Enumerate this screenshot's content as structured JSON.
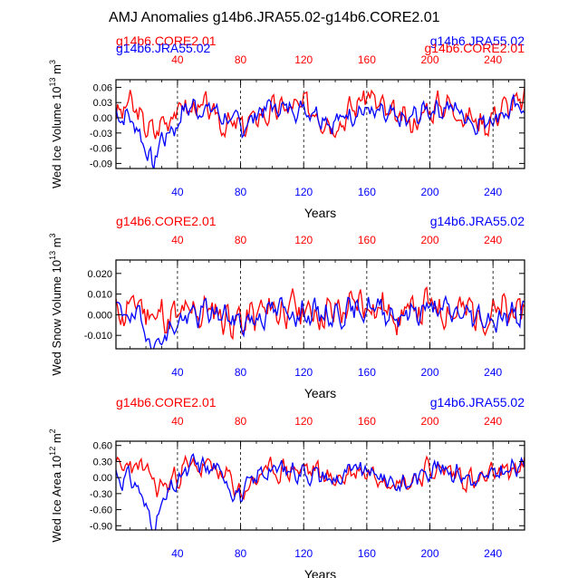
{
  "title": "AMJ Anomalies g14b6.JRA55.02-g14b6.CORE2.01",
  "colors": {
    "core": "#ff0000",
    "jra": "#0000ff",
    "axis": "#000000"
  },
  "chart_data": [
    {
      "type": "line",
      "name": "ice-volume",
      "ylabel_main": "Wed Ice Volume 10",
      "ylabel_exp": "13",
      "ylabel_unit": " m",
      "ylabel_unit_exp": "3",
      "xlabel": "Years",
      "legend_left": "g14b6.CORE2.01",
      "legend_right": "g14b6.JRA55.02",
      "legend_left_overlay": "g14b6.JRA55.02",
      "legend_right_overlay": "g14b6.CORE2.01",
      "xlim": [
        1,
        260
      ],
      "ylim": [
        -0.1,
        0.075
      ],
      "yticks": [
        0.06,
        0.03,
        0.0,
        -0.03,
        -0.06,
        -0.09
      ],
      "ytick_labels": [
        "0.06",
        "0.03",
        "0.00",
        "-0.03",
        "-0.06",
        "-0.09"
      ],
      "xticks": [
        40,
        80,
        120,
        160,
        200,
        240
      ],
      "xtick_labels": [
        "40",
        "80",
        "120",
        "160",
        "200",
        "240"
      ],
      "grid_x": [
        40,
        80,
        120,
        160,
        200,
        240
      ],
      "series": [
        {
          "name": "g14b6.CORE2.01",
          "amp": 0.035,
          "seed": 3,
          "keys": [
            [
              1,
              0.0
            ],
            [
              10,
              0.03
            ],
            [
              18,
              -0.01
            ],
            [
              25,
              -0.03
            ],
            [
              33,
              0.0
            ],
            [
              40,
              0.02
            ],
            [
              55,
              0.02
            ],
            [
              70,
              -0.01
            ],
            [
              80,
              -0.02
            ],
            [
              95,
              0.01
            ],
            [
              110,
              0.02
            ],
            [
              125,
              0.02
            ],
            [
              140,
              -0.01
            ],
            [
              155,
              0.03
            ],
            [
              160,
              0.05
            ],
            [
              175,
              0.0
            ],
            [
              190,
              -0.01
            ],
            [
              200,
              0.02
            ],
            [
              210,
              0.03
            ],
            [
              225,
              0.0
            ],
            [
              235,
              -0.01
            ],
            [
              245,
              0.02
            ],
            [
              260,
              0.03
            ]
          ]
        },
        {
          "name": "g14b6.JRA55.02",
          "amp": 0.03,
          "seed": 7,
          "keys": [
            [
              1,
              0.01
            ],
            [
              10,
              0.0
            ],
            [
              18,
              -0.04
            ],
            [
              22,
              -0.08
            ],
            [
              25,
              -0.09
            ],
            [
              30,
              -0.04
            ],
            [
              38,
              -0.02
            ],
            [
              45,
              0.02
            ],
            [
              60,
              0.02
            ],
            [
              75,
              -0.01
            ],
            [
              80,
              -0.02
            ],
            [
              95,
              0.02
            ],
            [
              110,
              0.02
            ],
            [
              125,
              0.02
            ],
            [
              140,
              -0.01
            ],
            [
              155,
              0.02
            ],
            [
              170,
              0.0
            ],
            [
              185,
              -0.01
            ],
            [
              200,
              0.02
            ],
            [
              215,
              0.02
            ],
            [
              230,
              -0.01
            ],
            [
              245,
              0.01
            ],
            [
              260,
              0.02
            ]
          ]
        }
      ]
    },
    {
      "type": "line",
      "name": "snow-volume",
      "ylabel_main": "Wed Snow Volume 10",
      "ylabel_exp": "13",
      "ylabel_unit": " m",
      "ylabel_unit_exp": "3",
      "xlabel": "Years",
      "legend_left": "g14b6.CORE2.01",
      "legend_right": "g14b6.JRA55.02",
      "xlim": [
        1,
        260
      ],
      "ylim": [
        -0.0165,
        0.0265
      ],
      "yticks": [
        0.02,
        0.01,
        0.0,
        -0.01
      ],
      "ytick_labels": [
        "0.020",
        "0.010",
        "0.000",
        "-0.010"
      ],
      "xticks": [
        40,
        80,
        120,
        160,
        200,
        240
      ],
      "xtick_labels": [
        "40",
        "80",
        "120",
        "160",
        "200",
        "240"
      ],
      "grid_x": [
        40,
        80,
        120,
        160,
        200,
        240
      ],
      "series": [
        {
          "name": "g14b6.CORE2.01",
          "amp": 0.012,
          "seed": 11,
          "keys": [
            [
              1,
              0.0
            ],
            [
              15,
              0.005
            ],
            [
              25,
              0.0
            ],
            [
              40,
              -0.002
            ],
            [
              60,
              0.003
            ],
            [
              80,
              -0.004
            ],
            [
              100,
              0.003
            ],
            [
              120,
              0.002
            ],
            [
              140,
              0.001
            ],
            [
              160,
              0.006
            ],
            [
              180,
              0.0
            ],
            [
              200,
              0.004
            ],
            [
              220,
              0.002
            ],
            [
              240,
              0.0
            ],
            [
              260,
              0.002
            ]
          ]
        },
        {
          "name": "g14b6.JRA55.02",
          "amp": 0.008,
          "seed": 19,
          "keys": [
            [
              1,
              0.003
            ],
            [
              12,
              0.0
            ],
            [
              20,
              -0.008
            ],
            [
              26,
              -0.014
            ],
            [
              32,
              -0.01
            ],
            [
              40,
              -0.004
            ],
            [
              60,
              0.002
            ],
            [
              80,
              -0.004
            ],
            [
              100,
              0.002
            ],
            [
              120,
              0.001
            ],
            [
              140,
              0.0
            ],
            [
              160,
              0.004
            ],
            [
              180,
              0.0
            ],
            [
              200,
              0.003
            ],
            [
              220,
              0.0
            ],
            [
              240,
              -0.002
            ],
            [
              260,
              0.001
            ]
          ]
        }
      ]
    },
    {
      "type": "line",
      "name": "ice-area",
      "ylabel_main": "Wed Ice Area 10",
      "ylabel_exp": "12",
      "ylabel_unit": " m",
      "ylabel_unit_exp": "2",
      "xlabel": "Years",
      "legend_left": "g14b6.CORE2.01",
      "legend_right": "g14b6.JRA55.02",
      "xlim": [
        1,
        260
      ],
      "ylim": [
        -0.98,
        0.68
      ],
      "yticks": [
        0.6,
        0.3,
        0.0,
        -0.3,
        -0.6,
        -0.9
      ],
      "ytick_labels": [
        "0.60",
        "0.30",
        "0.00",
        "-0.30",
        "-0.60",
        "-0.90"
      ],
      "xticks": [
        40,
        80,
        120,
        160,
        200,
        240
      ],
      "xtick_labels": [
        "40",
        "80",
        "120",
        "160",
        "200",
        "240"
      ],
      "grid_x": [
        40,
        80,
        120,
        160,
        200,
        240
      ],
      "series": [
        {
          "name": "g14b6.CORE2.01",
          "amp": 0.28,
          "seed": 23,
          "keys": [
            [
              1,
              0.1
            ],
            [
              10,
              0.25
            ],
            [
              20,
              0.1
            ],
            [
              28,
              -0.2
            ],
            [
              35,
              -0.1
            ],
            [
              45,
              0.2
            ],
            [
              60,
              0.2
            ],
            [
              75,
              -0.1
            ],
            [
              80,
              -0.3
            ],
            [
              95,
              0.1
            ],
            [
              110,
              0.15
            ],
            [
              125,
              0.15
            ],
            [
              140,
              -0.05
            ],
            [
              155,
              0.15
            ],
            [
              170,
              0.05
            ],
            [
              185,
              -0.1
            ],
            [
              200,
              0.15
            ],
            [
              215,
              0.1
            ],
            [
              230,
              -0.1
            ],
            [
              245,
              0.1
            ],
            [
              260,
              0.2
            ]
          ]
        },
        {
          "name": "g14b6.JRA55.02",
          "amp": 0.25,
          "seed": 31,
          "keys": [
            [
              1,
              0.05
            ],
            [
              12,
              -0.05
            ],
            [
              18,
              -0.4
            ],
            [
              23,
              -0.8
            ],
            [
              26,
              -0.9
            ],
            [
              32,
              -0.4
            ],
            [
              40,
              -0.1
            ],
            [
              50,
              0.25
            ],
            [
              65,
              0.15
            ],
            [
              80,
              -0.35
            ],
            [
              95,
              0.15
            ],
            [
              110,
              0.15
            ],
            [
              125,
              0.1
            ],
            [
              140,
              -0.05
            ],
            [
              155,
              0.15
            ],
            [
              170,
              0.0
            ],
            [
              185,
              -0.15
            ],
            [
              200,
              0.2
            ],
            [
              215,
              0.15
            ],
            [
              230,
              -0.1
            ],
            [
              245,
              0.1
            ],
            [
              260,
              0.2
            ]
          ]
        }
      ]
    }
  ]
}
